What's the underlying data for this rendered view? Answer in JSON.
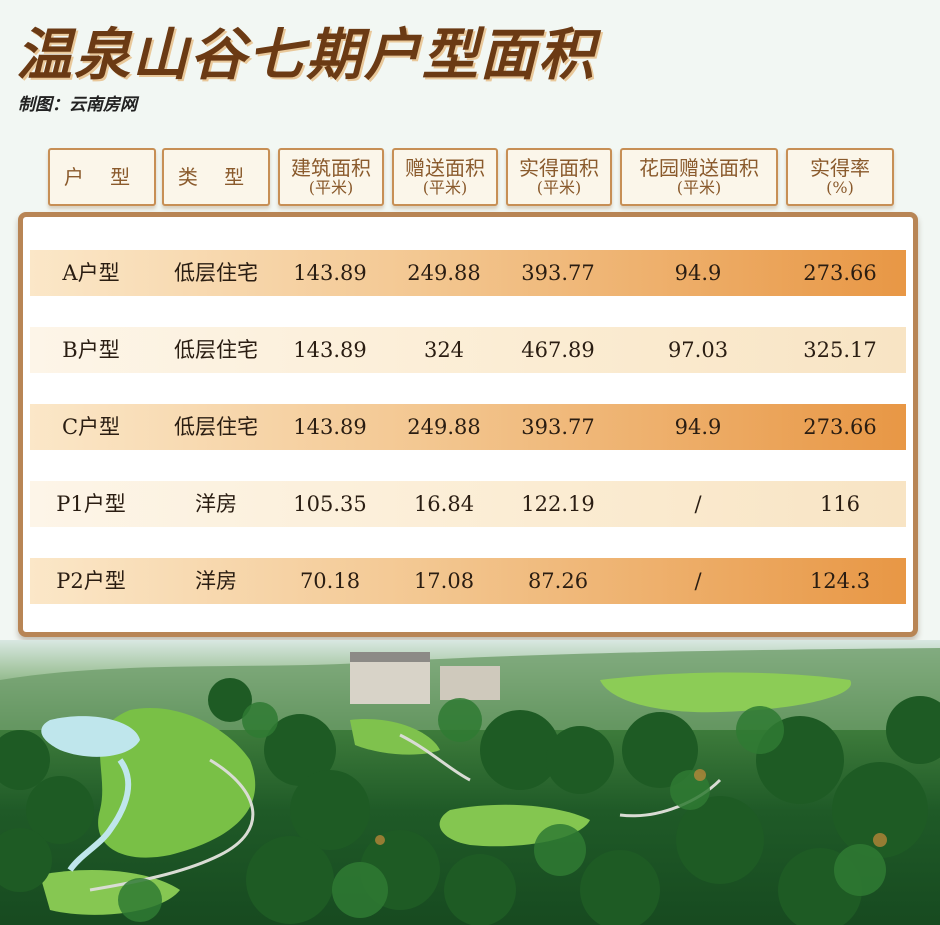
{
  "title": "温泉山谷七期户型面积",
  "credit": "制图：云南房网",
  "headers": [
    {
      "line1": "户 型",
      "line2": ""
    },
    {
      "line1": "类 型",
      "line2": ""
    },
    {
      "line1": "建筑面积",
      "line2": "(平米)"
    },
    {
      "line1": "赠送面积",
      "line2": "(平米)"
    },
    {
      "line1": "实得面积",
      "line2": "(平米)"
    },
    {
      "line1": "花园赠送面积",
      "line2": "(平米)"
    },
    {
      "line1": "实得率",
      "line2": "(%)"
    }
  ],
  "rows": [
    {
      "type": "A户型",
      "category": "低层住宅",
      "build": "143.89",
      "gift": "249.88",
      "actual": "393.77",
      "garden": "94.9",
      "rate": "273.66"
    },
    {
      "type": "B户型",
      "category": "低层住宅",
      "build": "143.89",
      "gift": "324",
      "actual": "467.89",
      "garden": "97.03",
      "rate": "325.17"
    },
    {
      "type": "C户型",
      "category": "低层住宅",
      "build": "143.89",
      "gift": "249.88",
      "actual": "393.77",
      "garden": "94.9",
      "rate": "273.66"
    },
    {
      "type": "P1户型",
      "category": "洋房",
      "build": "105.35",
      "gift": "16.84",
      "actual": "122.19",
      "garden": "/",
      "rate": "116"
    },
    {
      "type": "P2户型",
      "category": "洋房",
      "build": "70.18",
      "gift": "17.08",
      "actual": "87.26",
      "garden": "/",
      "rate": "124.3"
    }
  ],
  "colors": {
    "title": "#6b3a14",
    "row_accent": "#e89745",
    "header_border": "#c78f55"
  }
}
